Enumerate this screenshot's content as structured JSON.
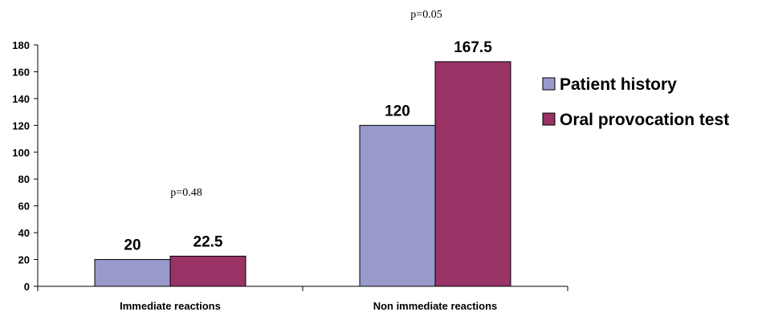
{
  "chart_data": {
    "type": "bar",
    "categories": [
      "Immediate reactions",
      "Non immediate reactions"
    ],
    "series": [
      {
        "name": "Patient history",
        "values": [
          20,
          120
        ],
        "color": "#9999cc"
      },
      {
        "name": "Oral provocation test",
        "values": [
          22.5,
          167.5
        ],
        "color": "#993366"
      }
    ],
    "data_labels": [
      [
        "20",
        "22.5"
      ],
      [
        "120",
        "167.5"
      ]
    ],
    "annotations": [
      "p=0.48",
      "p=0.05"
    ],
    "ylim": [
      0,
      180
    ],
    "yticks": [
      0,
      20,
      40,
      60,
      80,
      100,
      120,
      140,
      160,
      180
    ],
    "grid": false,
    "legend_position": "right"
  }
}
